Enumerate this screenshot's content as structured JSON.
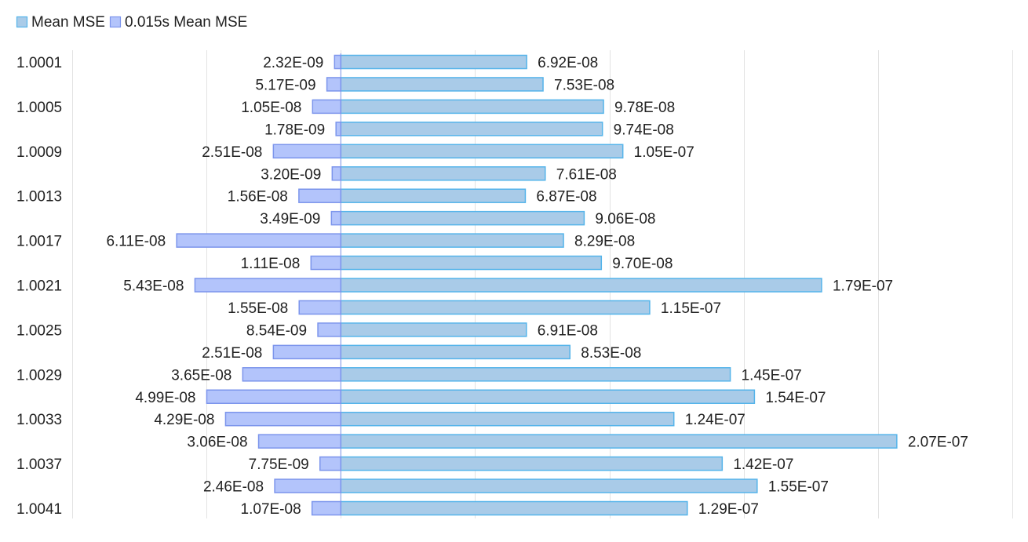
{
  "chart_data": {
    "type": "bar",
    "orientation": "horizontal-diverging",
    "legend": {
      "position": "top-left",
      "entries": [
        {
          "name": "Mean MSE",
          "color": "#a9cbe8",
          "stroke": "#55b4ea"
        },
        {
          "name": "0.015s Mean MSE",
          "color": "#b3c4fb",
          "stroke": "#7c95ec"
        }
      ]
    },
    "category_labels_shown": [
      "1.0001",
      "",
      "1.0005",
      "",
      "1.0009",
      "",
      "1.0013",
      "",
      "1.0017",
      "",
      "1.0021",
      "",
      "1.0025",
      "",
      "1.0029",
      "",
      "1.0033",
      "",
      "1.0037",
      "",
      "1.0041"
    ],
    "series": [
      {
        "name": "Mean MSE",
        "direction": "right",
        "values": [
          6.92e-08,
          7.53e-08,
          9.78e-08,
          9.74e-08,
          1.05e-07,
          7.61e-08,
          6.87e-08,
          9.06e-08,
          8.29e-08,
          9.7e-08,
          1.79e-07,
          1.15e-07,
          6.91e-08,
          8.53e-08,
          1.45e-07,
          1.54e-07,
          1.24e-07,
          2.07e-07,
          1.42e-07,
          1.55e-07,
          1.29e-07
        ],
        "labels": [
          "6.92E-08",
          "7.53E-08",
          "9.78E-08",
          "9.74E-08",
          "1.05E-07",
          "7.61E-08",
          "6.87E-08",
          "9.06E-08",
          "8.29E-08",
          "9.70E-08",
          "1.79E-07",
          "1.15E-07",
          "6.91E-08",
          "8.53E-08",
          "1.45E-07",
          "1.54E-07",
          "1.24E-07",
          "2.07E-07",
          "1.42E-07",
          "1.55E-07",
          "1.29E-07"
        ]
      },
      {
        "name": "0.015s Mean MSE",
        "direction": "left",
        "values": [
          2.32e-09,
          5.17e-09,
          1.05e-08,
          1.78e-09,
          2.51e-08,
          3.2e-09,
          1.56e-08,
          3.49e-09,
          6.11e-08,
          1.11e-08,
          5.43e-08,
          1.55e-08,
          8.54e-09,
          2.51e-08,
          3.65e-08,
          4.99e-08,
          4.29e-08,
          3.06e-08,
          7.75e-09,
          2.46e-08,
          1.07e-08
        ],
        "labels": [
          "2.32E-09",
          "5.17E-09",
          "1.05E-08",
          "1.78E-09",
          "2.51E-08",
          "3.20E-09",
          "1.56E-08",
          "3.49E-09",
          "6.11E-08",
          "1.11E-08",
          "5.43E-08",
          "1.55E-08",
          "8.54E-09",
          "2.51E-08",
          "3.65E-08",
          "4.99E-08",
          "4.29E-08",
          "3.06E-08",
          "7.75E-09",
          "2.46E-08",
          "1.07E-08"
        ]
      }
    ],
    "xlim": [
      -1e-07,
      2.5e-07
    ],
    "grid_step": 5e-08,
    "grid": true,
    "title": "",
    "xlabel": "",
    "ylabel": ""
  }
}
